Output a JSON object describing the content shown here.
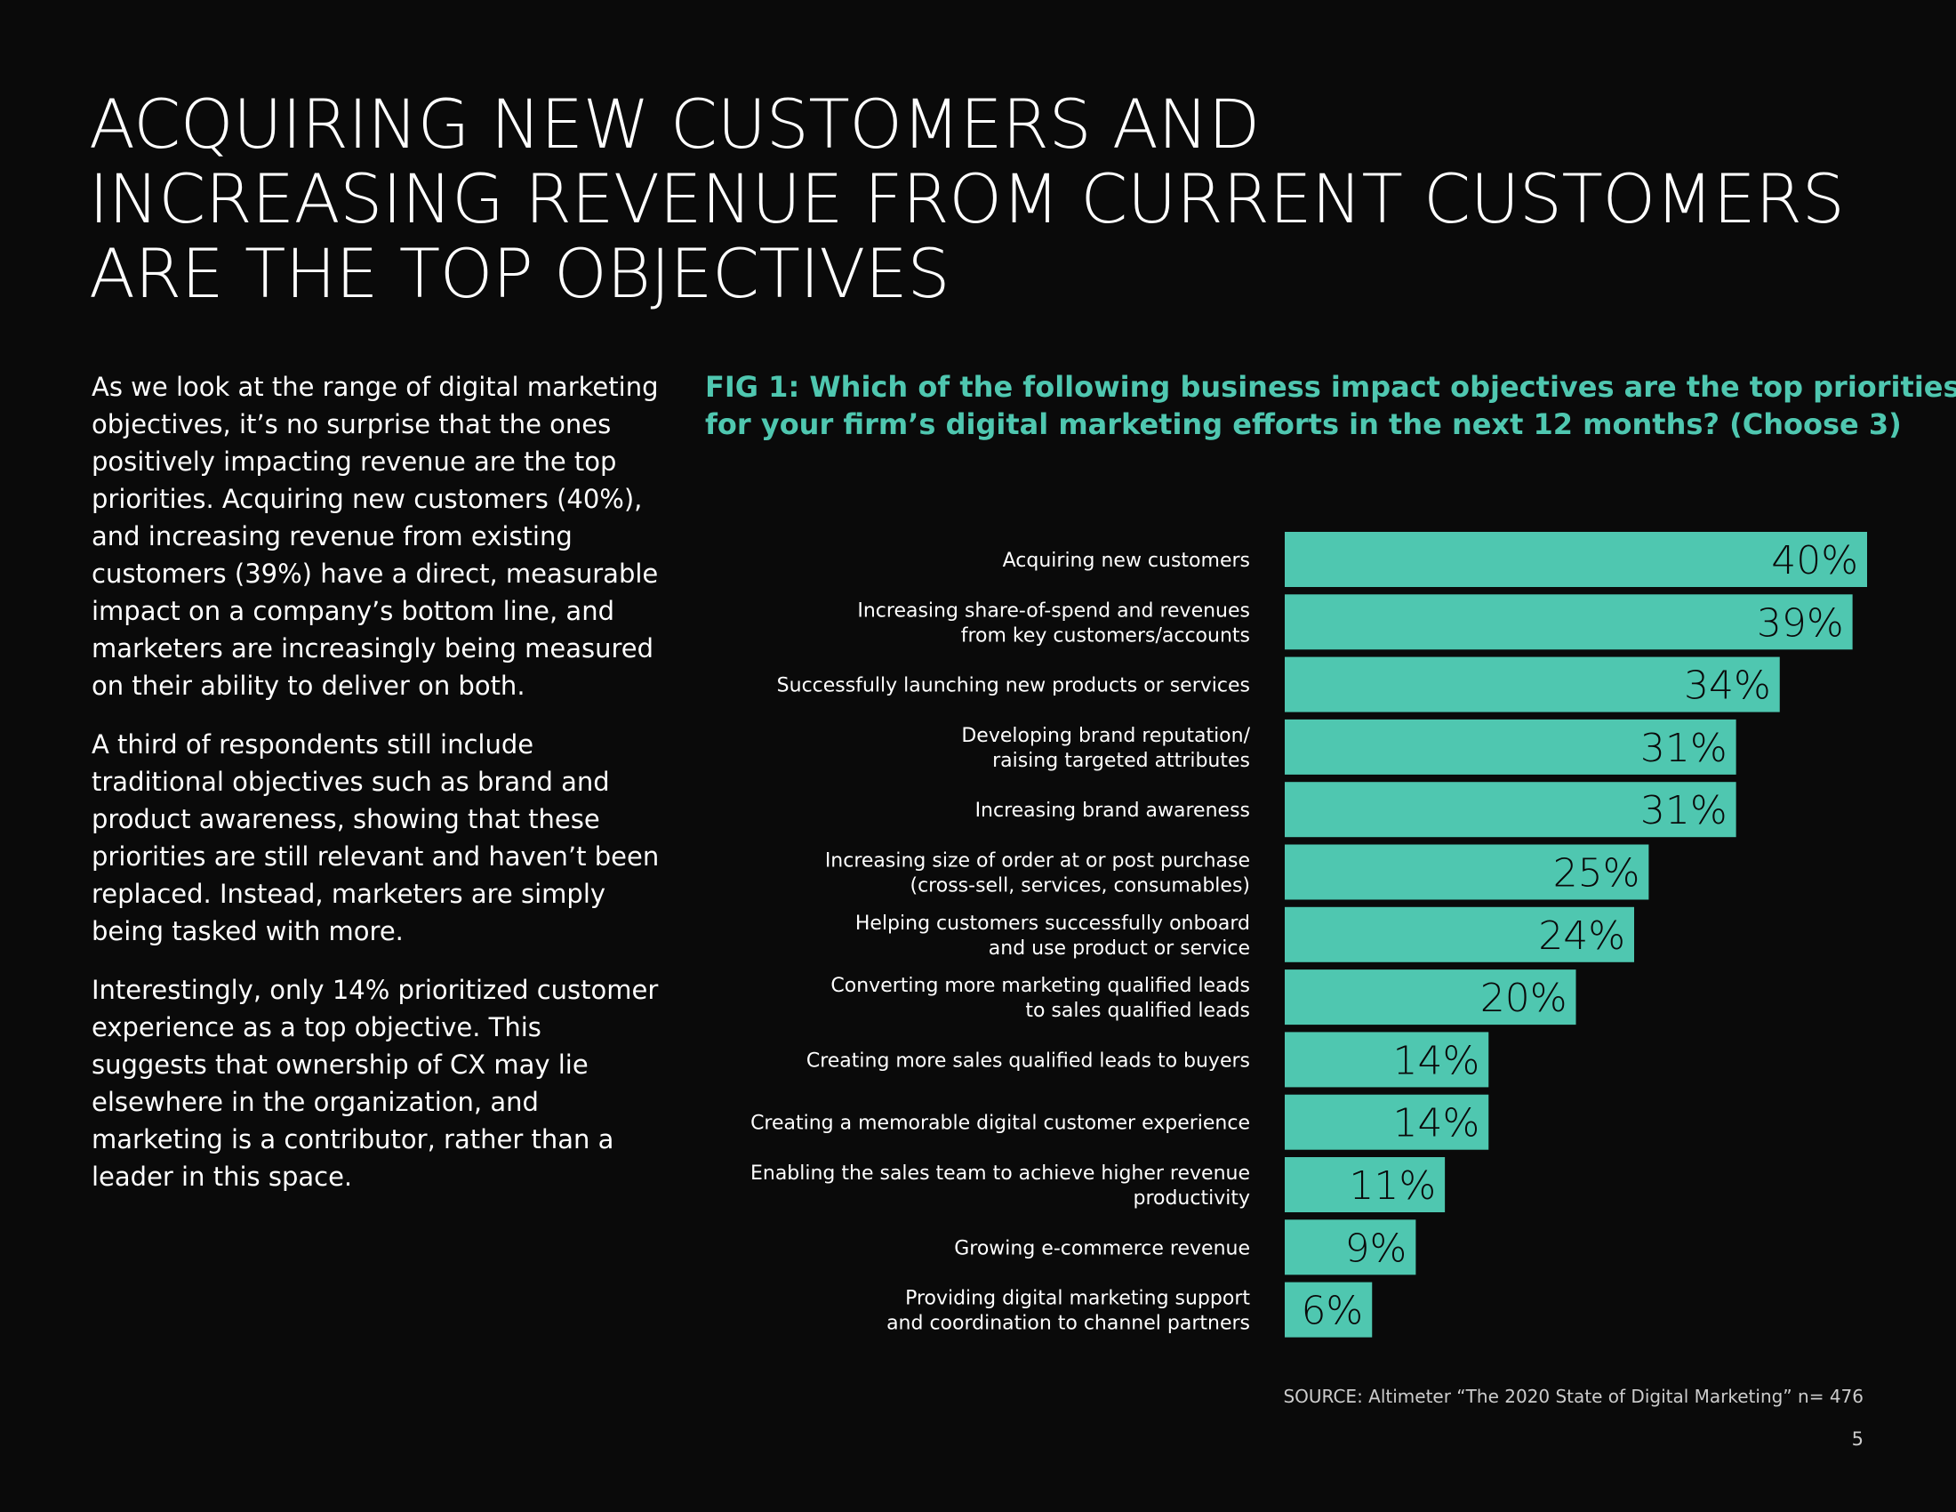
{
  "page": {
    "headline_lines": [
      "ACQUIRING NEW CUSTOMERS AND",
      "INCREASING REVENUE FROM CURRENT CUSTOMERS",
      "ARE THE TOP OBJECTIVES"
    ],
    "body_paragraphs": [
      "As we look at the range of digital marketing objectives, it’s no surprise that the ones positively impacting revenue are the top priorities. Acquiring new customers (40%), and increasing revenue from existing customers (39%) have a direct, measurable impact on a company’s bottom line, and marketers are increasingly being measured on their ability to deliver on both.",
      "A third of respondents still include traditional objectives such as brand and product awareness, showing that these priorities are still relevant and haven’t been replaced. Instead, marketers are simply being tasked with more.",
      "Interestingly, only 14% prioritized customer experience as a top objective. This suggests that ownership of CX may lie elsewhere in the organization, and marketing is a contributor, rather than a leader in this space."
    ],
    "source": "SOURCE: Altimeter “The 2020 State of Digital Marketing” n= 476",
    "page_number": "5"
  },
  "colors": {
    "background": "#0a0a0a",
    "accent": "#4fc7b0",
    "bar_label_text": "#0a0a0a",
    "text": "#ffffff"
  },
  "chart_data": {
    "type": "bar",
    "orientation": "horizontal",
    "title_lines": [
      "FIG 1: Which of the following business impact objectives are the top priorities",
      "for your firm’s digital marketing efforts in the next 12 months? (Choose 3)"
    ],
    "categories": [
      [
        "Acquiring new customers"
      ],
      [
        "Increasing share-of-spend and revenues",
        "from key customers/accounts"
      ],
      [
        "Successfully launching new products or services"
      ],
      [
        "Developing brand reputation/",
        "raising targeted attributes"
      ],
      [
        "Increasing brand awareness"
      ],
      [
        "Increasing size of order at or post purchase",
        "(cross-sell, services, consumables)"
      ],
      [
        "Helping customers successfully onboard",
        "and use product or service"
      ],
      [
        "Converting more marketing qualified leads",
        "to sales qualified leads"
      ],
      [
        "Creating more sales qualified leads to buyers"
      ],
      [
        "Creating a memorable digital customer experience"
      ],
      [
        "Enabling the sales team to achieve higher revenue",
        "productivity"
      ],
      [
        "Growing e-commerce revenue"
      ],
      [
        "Providing digital marketing support",
        "and coordination to channel partners"
      ]
    ],
    "values": [
      40,
      39,
      34,
      31,
      31,
      25,
      24,
      20,
      14,
      14,
      11,
      9,
      6
    ],
    "value_labels": [
      "40%",
      "39%",
      "34%",
      "31%",
      "31%",
      "25%",
      "24%",
      "20%",
      "14%",
      "14%",
      "11%",
      "9%",
      "6%"
    ],
    "unit": "%",
    "xlim": [
      0,
      40
    ],
    "grid": false,
    "legend": "none",
    "xlabel": "",
    "ylabel": ""
  }
}
